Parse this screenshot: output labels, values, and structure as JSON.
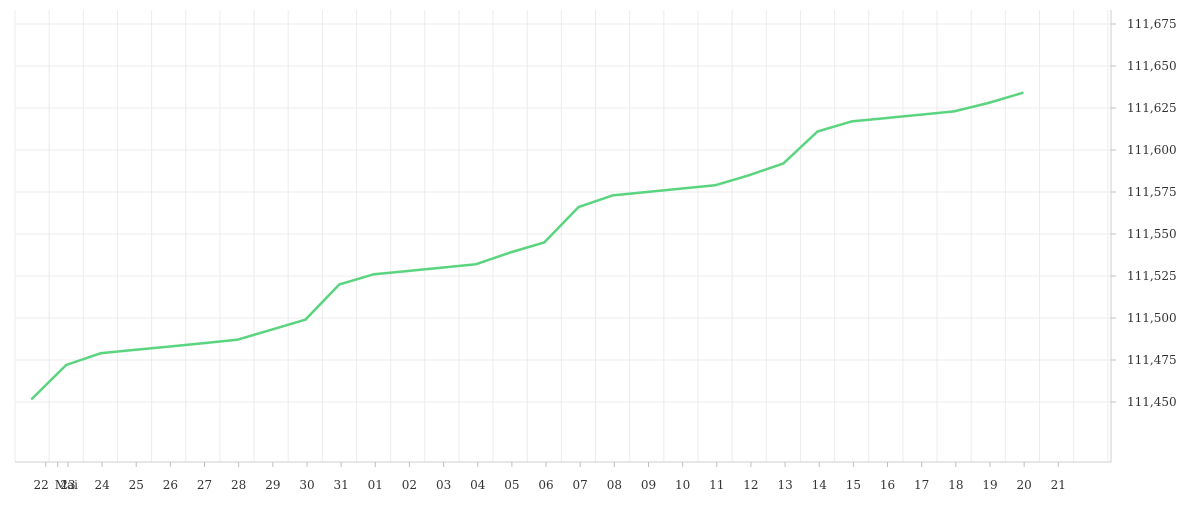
{
  "chart_data": {
    "type": "line",
    "title": "",
    "xlabel": "",
    "ylabel": "",
    "x_tick_labels": [
      "22",
      "Mai",
      "23",
      "24",
      "25",
      "26",
      "27",
      "28",
      "29",
      "30",
      "31",
      "01",
      "02",
      "03",
      "04",
      "05",
      "06",
      "07",
      "08",
      "09",
      "10",
      "11",
      "12",
      "13",
      "14",
      "15",
      "16",
      "17",
      "18",
      "19",
      "20",
      "21"
    ],
    "y_tick_labels": [
      "111,450",
      "111,475",
      "111,500",
      "111,525",
      "111,550",
      "111,575",
      "111,600",
      "111,625",
      "111,650",
      "111,675"
    ],
    "ylim": [
      111.425,
      111.688
    ],
    "x_range_days": [
      0,
      31.6
    ],
    "grid": true,
    "legend": "none",
    "line_color": "#5ad47f",
    "grid_color": "#ececec",
    "series": [
      {
        "x": [
          0.5,
          1.5,
          2.5,
          3.5,
          4.5,
          5.5,
          6.5,
          7.5,
          8.5,
          9.5,
          10.5,
          11.5,
          12.5,
          13.5,
          14.5,
          15.5,
          16.5,
          17.5,
          18.5,
          19.5,
          20.5,
          21.5,
          22.5,
          23.5,
          24.5,
          25.5,
          26.5,
          27.5,
          28.5,
          29.5
        ],
        "y": [
          111.452,
          111.472,
          111.479,
          111.481,
          111.483,
          111.485,
          111.487,
          111.493,
          111.499,
          111.52,
          111.526,
          111.528,
          111.53,
          111.532,
          111.539,
          111.545,
          111.566,
          111.573,
          111.575,
          111.577,
          111.579,
          111.585,
          111.592,
          111.611,
          111.617,
          111.619,
          111.621,
          111.623,
          111.628,
          111.634
        ]
      }
    ]
  }
}
